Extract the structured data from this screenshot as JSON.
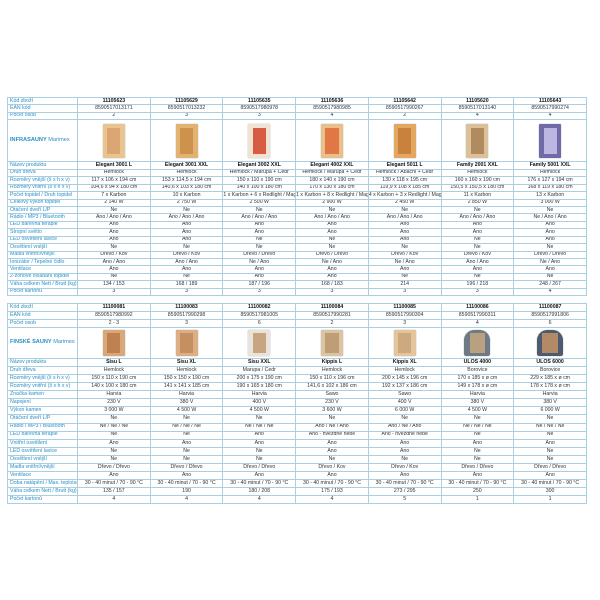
{
  "tables": [
    {
      "section": {
        "bold": "INFRASAUNY",
        "normal": "Marimex"
      },
      "head_rows": [
        {
          "label": "Kód zboží",
          "bold": true,
          "values": [
            "11105623",
            "11105629",
            "11105635",
            "11105636",
            "11105642",
            "11105620",
            "11105643"
          ]
        },
        {
          "label": "EAN kód",
          "values": [
            "8590517013171",
            "8590517013232",
            "8590517980978",
            "8590517980985",
            "8590517990267",
            "8590517013140",
            "8590517990274"
          ]
        },
        {
          "label": "Počet osob",
          "values": [
            "2",
            "3",
            "3",
            "4",
            "2",
            "4",
            "4"
          ]
        }
      ],
      "images": [
        {
          "icon": "infrasauna-image",
          "body": "#e8c58e",
          "inner": "#d9a070"
        },
        {
          "icon": "infrasauna-image",
          "body": "#e2b272",
          "inner": "#c98c45"
        },
        {
          "icon": "infrasauna-image",
          "body": "#efe4d2",
          "inner": "#d2442a"
        },
        {
          "icon": "infrasauna-image",
          "body": "#e9c08a",
          "inner": "#e06a3a"
        },
        {
          "icon": "infrasauna-image",
          "body": "#e3a860",
          "inner": "#c47a35"
        },
        {
          "icon": "infrasauna-image",
          "body": "#dcc09a",
          "inner": "#a88155"
        },
        {
          "icon": "infrasauna-image",
          "body": "#6f6aa8",
          "inner": "#c9c4ec"
        }
      ],
      "rows": [
        {
          "label": "Název produktu",
          "bold": true,
          "values": [
            "Elegant 3001 L",
            "Elegant 3001 XXL",
            "Elegant 3002 XXL",
            "Elegant 4002 XXL",
            "Elegant 5011 L",
            "Family 2001 XXL",
            "Family 5001 XXL"
          ]
        },
        {
          "label": "Druh dřeva",
          "values": [
            "Hemlock",
            "Hemlock",
            "Hemlock / Marupa + Cedr",
            "Hemlock / Marupa + Cedr",
            "Hemlock / Abachi + Cedr",
            "Hemlock",
            "Hemlock"
          ]
        },
        {
          "label": "Rozměry vnější (š x h x v)",
          "values": [
            "117 x 106 x 194 cm",
            "153 x 114,5 x 194 cm",
            "150 x 110 x 190 cm",
            "180 x 140 x 190 cm",
            "130 x 118 x 195 cm",
            "160 x 160 x 190 cm",
            "176 x 127 x 194 cm"
          ]
        },
        {
          "label": "Rozměry vnitřní (š x h x v)",
          "values": [
            "104,6 x 94 x 180 cm",
            "140,6 x 103 x 180 cm",
            "140 x 100 x 180 cm",
            "170 x 130 x 180 cm",
            "119,9 x 108 x 185 cm",
            "150,5 x 150,5 x 180 cm",
            "168 x 119 x 180 cm"
          ]
        },
        {
          "label": "Počet topidel / Druh topidel",
          "values": [
            "7 x Karbon",
            "10 x Karbon",
            "1 x Karbon + 6 x Redlight / Magnesium",
            "1 x Karbon + 8 x Redlight / Magnesium",
            "4 x Karbon + 3 x Redlight / Magnesium",
            "11 x Karbon",
            "13 x Karbon"
          ]
        },
        {
          "label": "Celkový výkon topidel",
          "values": [
            "2 140 W",
            "2 750 W",
            "2 500 W",
            "2 900 W",
            "2 450 W",
            "2 850 W",
            "3 000 W"
          ]
        },
        {
          "label": "Otáčení dveří L/P",
          "values": [
            "Ne",
            "Ne",
            "Ne",
            "Ne",
            "Ne",
            "Ne",
            "Ne"
          ]
        },
        {
          "label": "Rádio / MP3 / Bluetooth",
          "values": [
            "Ano / Ano / Ano",
            "Ano / Ano / Ano",
            "Ano / Ano / Ano",
            "Ano / Ano / Ano",
            "Ano / Ano / Ano",
            "Ano / Ano / Ano",
            "Ne / Ano / Ano"
          ]
        },
        {
          "label": "LED barevná terapie",
          "values": [
            "Ano",
            "Ano",
            "Ano",
            "Ano",
            "Ano",
            "Ano",
            "Ano"
          ]
        },
        {
          "label": "Stropní světlo",
          "values": [
            "Ano",
            "Ano",
            "Ano",
            "Ano",
            "Ano",
            "Ano",
            "Ano"
          ]
        },
        {
          "label": "LED osvětlení lavice",
          "values": [
            "Ano",
            "Ano",
            "Ne",
            "Ne",
            "Ano",
            "Ne",
            "Ano"
          ]
        },
        {
          "label": "Osvětlení vnější",
          "values": [
            "Ne",
            "Ne",
            "Ne",
            "Ne",
            "Ne",
            "Ne",
            "Ne"
          ]
        },
        {
          "label": "Madla vnitřní/vnější",
          "values": [
            "Dřevo / Kov",
            "Dřevo / Kov",
            "Dřevo / Dřevo",
            "Dřevo / Dřevo",
            "Dřevo / Kov",
            "Dřevo / Kov",
            "Dřevo / Dřevo"
          ]
        },
        {
          "label": "Ionizátor / Tepelné čidlo",
          "values": [
            "Ano / Ano",
            "Ano / Ano",
            "Ne / Ano",
            "Ne / Ano",
            "Ne / Ano",
            "Ano / Ano",
            "Ne / Ano"
          ]
        },
        {
          "label": "Ventilace",
          "values": [
            "Ano",
            "Ano",
            "Ano",
            "Ano",
            "Ano",
            "Ano",
            "Ano"
          ]
        },
        {
          "label": "2-zónové ovládání topidel",
          "values": [
            "Ne",
            "Ne",
            "Ano",
            "Ano",
            "Ne",
            "Ne",
            "Ne"
          ]
        },
        {
          "label": "Váha celkem Nett / Brutt (kg)",
          "values": [
            "134 / 153",
            "168 / 189",
            "187 / 196",
            "168 / 183",
            "214",
            "196 / 218",
            "248 / 267"
          ]
        },
        {
          "label": "Počet kartonů",
          "values": [
            "3",
            "3",
            "3",
            "3",
            "3",
            "3",
            "4"
          ]
        }
      ]
    },
    {
      "section": {
        "bold": "FINSKÉ SAUNY",
        "normal": "Marimex"
      },
      "head_rows": [
        {
          "label": "Kód zboží",
          "bold": true,
          "values": [
            "11100081",
            "11100083",
            "11100082",
            "11100084",
            "11100085",
            "11100086",
            "11100087"
          ]
        },
        {
          "label": "EAN kód",
          "values": [
            "8590517980992",
            "8590517990298",
            "8590517981005",
            "8590517990281",
            "8590517990304",
            "8590517990311",
            "8590517991806"
          ]
        },
        {
          "label": "Počet osob",
          "values": [
            "2 - 3",
            "3",
            "6",
            "2",
            "3",
            "4",
            "6"
          ]
        }
      ],
      "images": [
        {
          "icon": "finnish-sauna-image",
          "body": "#d9a878",
          "inner": "#b97a48"
        },
        {
          "icon": "finnish-sauna-image",
          "body": "#dcae85",
          "inner": "#c18a5c"
        },
        {
          "icon": "finnish-sauna-image",
          "body": "#e8e4dc",
          "inner": "#c09a70"
        },
        {
          "icon": "finnish-sauna-image",
          "body": "#dcc3a4",
          "inner": "#b89670"
        },
        {
          "icon": "finnish-sauna-image",
          "body": "#e3c49c",
          "inner": "#c9a47a"
        },
        {
          "icon": "barrel-sauna-image",
          "body": "#6e7a86",
          "inner": "#c7a77f"
        },
        {
          "icon": "barrel-sauna-image",
          "body": "#4e5a70",
          "inner": "#c49464"
        }
      ],
      "rows": [
        {
          "label": "Název produktu",
          "bold": true,
          "values": [
            "Sisu L",
            "Sisu XL",
            "Sisu XXL",
            "Kippis L",
            "Kippis XL",
            "ULOS 4000",
            "ULOS 6000"
          ]
        },
        {
          "label": "Druh dřeva",
          "values": [
            "Hemlock",
            "Hemlock",
            "Marupa / Cedr",
            "Hemlock",
            "Hemlock",
            "Borovice",
            "Borovice"
          ]
        },
        {
          "label": "Rozměry vnější (š x h x v)",
          "values": [
            "150 x 110 x 190 cm",
            "150 x 150 x 190 cm",
            "200 x 175 x 190 cm",
            "150 x 110 x 196 cm",
            "200 x 145 x 196 cm",
            "170 x 185 x ø cm",
            "229 x 185 x ø cm"
          ]
        },
        {
          "label": "Rozměry vnitřní (š x h x v)",
          "values": [
            "140 x 100 x 180 cm",
            "141 x 141 x 185 cm",
            "190 x 165 x 180 cm",
            "141,6 x 102 x 186 cm",
            "192 x 137 x 186 cm",
            "149 x 178 x ø cm",
            "178 x 178 x ø cm"
          ]
        },
        {
          "label": "Značka kamen",
          "values": [
            "Harvia",
            "Harvia",
            "Harvia",
            "Sawo",
            "Sawo",
            "Harvia",
            "Harvia"
          ]
        },
        {
          "label": "Napojení",
          "values": [
            "230 V",
            "380 V",
            "400 V",
            "230 V",
            "400 V",
            "380 V",
            "380 V"
          ]
        },
        {
          "label": "Výkon kamen",
          "values": [
            "3 000 W",
            "4 500 W",
            "4 500 W",
            "3 600 W",
            "6 000 W",
            "4 500 W",
            "6 000 W"
          ]
        },
        {
          "label": "Otáčení dveří L/P",
          "values": [
            "Ne",
            "Ne",
            "Ne",
            "Ne",
            "Ne",
            "Ne",
            "Ne"
          ]
        },
        {
          "label": "Rádio / MP3 / Bluetooth",
          "values": [
            "Ne / Ne / Ne",
            "Ne / Ne / Ne",
            "Ne / Ne / Ne",
            "Ano / Ne / Ano",
            "Ano / Ne / Ano",
            "Ne / Ne / Ne",
            "Ne / Ne / Ne"
          ]
        },
        {
          "label": "LED barevná terapie",
          "values": [
            "Ne",
            "Ne",
            "Ano",
            "Ano - hvězdné nebe",
            "Ano - hvězdné nebe",
            "Ne",
            "Ne"
          ]
        },
        {
          "label": "Vnitřní osvětlení",
          "values": [
            "Ano",
            "Ano",
            "Ano",
            "Ano",
            "Ano",
            "Ano",
            "Ano"
          ]
        },
        {
          "label": "LED osvětlení lavice",
          "values": [
            "Ne",
            "Ne",
            "Ne",
            "Ano",
            "Ano",
            "Ne",
            "Ne"
          ]
        },
        {
          "label": "Osvětlení vnější",
          "values": [
            "Ne",
            "Ne",
            "Ne",
            "Ne",
            "Ne",
            "Ne",
            "Ne"
          ]
        },
        {
          "label": "Madla vnitřní/vnější",
          "values": [
            "Dřevo / Dřevo",
            "Dřevo / Dřevo",
            "Dřevo / Dřevo",
            "Dřevo / Kov",
            "Dřevo / Kov",
            "Dřevo / Dřevo",
            "Dřevo / Dřevo"
          ]
        },
        {
          "label": "Ventilace",
          "values": [
            "Ano",
            "Ano",
            "Ano",
            "Ano",
            "Ano",
            "Ano",
            "Ano"
          ]
        },
        {
          "label": "Doba natápění / Max. teplota",
          "values": [
            "30 - 40 minut / 70 - 90 °C",
            "30 - 40 minut / 70 - 90 °C",
            "30 - 40 minut / 70 - 90 °C",
            "30 - 40 minut / 70 - 90 °C",
            "30 - 40 minut / 70 - 90 °C",
            "30 - 40 minut / 70 - 90 °C",
            "30 - 40 minut / 70 - 90 °C"
          ]
        },
        {
          "label": "Váha celkem Nett / Brutt (kg)",
          "values": [
            "135 / 157",
            "190",
            "180 / 208",
            "175 / 193",
            "273 / 295",
            "250",
            "300"
          ]
        },
        {
          "label": "Počet kartonů",
          "values": [
            "4",
            "4",
            "4",
            "4",
            "5",
            "1",
            "1"
          ]
        }
      ]
    }
  ]
}
